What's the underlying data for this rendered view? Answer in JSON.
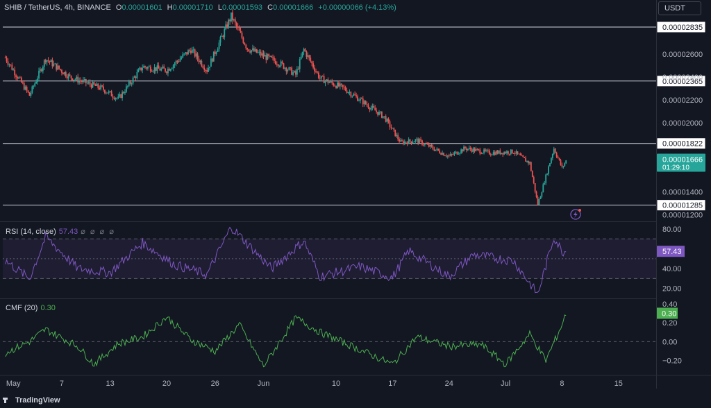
{
  "header": {
    "symbol": "SHIB / TetherUS, 4h, BINANCE",
    "open_key": "O",
    "open": "0.00001601",
    "high_key": "H",
    "high": "0.00001710",
    "low_key": "L",
    "low": "0.00001593",
    "close_key": "C",
    "close": "0.00001666",
    "change": "+0.00000066 (+4.13%)",
    "currency": "USDT"
  },
  "rsi_legend": {
    "name": "RSI (14, close)",
    "value": "57.43",
    "icons": "⌀ ⌀ ⌀ ⌀"
  },
  "cmf_legend": {
    "name": "CMF (20)",
    "value": "0.30"
  },
  "branding": {
    "text": "TradingView"
  },
  "colors": {
    "background": "#131722",
    "up": "#26a69a",
    "down": "#ef5350",
    "rsi": "#7e57c2",
    "cmf": "#4caf50",
    "level": "#d1d4dc"
  },
  "chart_data": [
    {
      "type": "candlestick",
      "series": [
        {
          "name": "SHIB / TetherUS, 4h, BINANCE"
        }
      ],
      "y_ticks": [
        "0.00002600",
        "0.00002400",
        "0.00002200",
        "0.00002000",
        "0.00001400",
        "0.00001200"
      ],
      "ylim": [
        1.15e-05,
        3.01e-05
      ],
      "x_ticks": [
        "May",
        "7",
        "13",
        "20",
        "26",
        "Jun",
        "10",
        "17",
        "24",
        "Jul",
        "8",
        "15"
      ],
      "horizontal_levels": [
        "0.00002835",
        "0.00002365",
        "0.00001822",
        "0.00001285"
      ],
      "last_price": {
        "value": "0.00001666",
        "countdown": "01:29:10"
      },
      "key_points": [
        {
          "x": "Apr 30",
          "y": 2.57e-05
        },
        {
          "x": "May 3",
          "y": 2.24e-05
        },
        {
          "x": "May 5",
          "y": 2.56e-05
        },
        {
          "x": "May 8",
          "y": 2.4e-05
        },
        {
          "x": "May 12",
          "y": 2.3e-05
        },
        {
          "x": "May 14",
          "y": 2.21e-05
        },
        {
          "x": "May 17",
          "y": 2.49e-05
        },
        {
          "x": "May 20",
          "y": 2.46e-05
        },
        {
          "x": "May 23",
          "y": 2.64e-05
        },
        {
          "x": "May 25",
          "y": 2.46e-05
        },
        {
          "x": "May 28",
          "y": 2.93e-05
        },
        {
          "x": "May 30",
          "y": 2.65e-05
        },
        {
          "x": "Jun 3",
          "y": 2.52e-05
        },
        {
          "x": "Jun 5",
          "y": 2.42e-05
        },
        {
          "x": "Jun 6",
          "y": 2.64e-05
        },
        {
          "x": "Jun 8",
          "y": 2.39e-05
        },
        {
          "x": "Jun 11",
          "y": 2.3e-05
        },
        {
          "x": "Jun 13",
          "y": 2.2e-05
        },
        {
          "x": "Jun 16",
          "y": 2.05e-05
        },
        {
          "x": "Jun 18",
          "y": 1.83e-05
        },
        {
          "x": "Jun 20",
          "y": 1.85e-05
        },
        {
          "x": "Jun 24",
          "y": 1.71e-05
        },
        {
          "x": "Jun 26",
          "y": 1.78e-05
        },
        {
          "x": "Jun 29",
          "y": 1.74e-05
        },
        {
          "x": "Jul 2",
          "y": 1.75e-05
        },
        {
          "x": "Jul 4",
          "y": 1.65e-05
        },
        {
          "x": "Jul 5",
          "y": 1.29e-05
        },
        {
          "x": "Jul 7",
          "y": 1.78e-05
        },
        {
          "x": "Jul 8",
          "y": 1.61e-05
        },
        {
          "x": "Jul 8",
          "y": 1.67e-05
        }
      ]
    },
    {
      "type": "line",
      "series": [
        {
          "name": "RSI (14, close)",
          "last": 57.43
        }
      ],
      "y_ticks": [
        "80.00",
        "60.00",
        "40.00",
        "20.00"
      ],
      "ylim": [
        10,
        87
      ],
      "bands": [
        30,
        50,
        70
      ],
      "key_points": [
        {
          "x": "Apr 30",
          "y": 48
        },
        {
          "x": "May 3",
          "y": 30
        },
        {
          "x": "May 5",
          "y": 72
        },
        {
          "x": "May 9",
          "y": 40
        },
        {
          "x": "May 13",
          "y": 36
        },
        {
          "x": "May 17",
          "y": 66
        },
        {
          "x": "May 21",
          "y": 44
        },
        {
          "x": "May 25",
          "y": 34
        },
        {
          "x": "May 28",
          "y": 82
        },
        {
          "x": "Jun 2",
          "y": 40
        },
        {
          "x": "Jun 6",
          "y": 68
        },
        {
          "x": "Jun 8",
          "y": 32
        },
        {
          "x": "Jun 13",
          "y": 42
        },
        {
          "x": "Jun 17",
          "y": 31
        },
        {
          "x": "Jun 19",
          "y": 58
        },
        {
          "x": "Jun 24",
          "y": 32
        },
        {
          "x": "Jun 27",
          "y": 54
        },
        {
          "x": "Jul 2",
          "y": 48
        },
        {
          "x": "Jul 5",
          "y": 14
        },
        {
          "x": "Jul 7",
          "y": 72
        },
        {
          "x": "Jul 8",
          "y": 57.43
        }
      ]
    },
    {
      "type": "line",
      "series": [
        {
          "name": "CMF (20)",
          "last": 0.3
        }
      ],
      "y_ticks": [
        "0.40",
        "0.20",
        "0.00",
        "−0.20"
      ],
      "ylim": [
        -0.35,
        0.45
      ],
      "zero_line": 0,
      "key_points": [
        {
          "x": "Apr 30",
          "y": -0.12
        },
        {
          "x": "May 3",
          "y": 0.0
        },
        {
          "x": "May 5",
          "y": 0.13
        },
        {
          "x": "May 9",
          "y": -0.05
        },
        {
          "x": "May 11",
          "y": -0.24
        },
        {
          "x": "May 14",
          "y": -0.02
        },
        {
          "x": "May 17",
          "y": 0.05
        },
        {
          "x": "May 20",
          "y": 0.26
        },
        {
          "x": "May 23",
          "y": 0.02
        },
        {
          "x": "May 26",
          "y": -0.1
        },
        {
          "x": "May 29",
          "y": 0.18
        },
        {
          "x": "Jun 1",
          "y": -0.26
        },
        {
          "x": "Jun 5",
          "y": 0.25
        },
        {
          "x": "Jun 8",
          "y": 0.1
        },
        {
          "x": "Jun 12",
          "y": -0.05
        },
        {
          "x": "Jun 17",
          "y": -0.24
        },
        {
          "x": "Jun 20",
          "y": 0.05
        },
        {
          "x": "Jun 24",
          "y": -0.05
        },
        {
          "x": "Jun 28",
          "y": -0.03
        },
        {
          "x": "Jul 1",
          "y": -0.24
        },
        {
          "x": "Jul 4",
          "y": 0.08
        },
        {
          "x": "Jul 6",
          "y": -0.2
        },
        {
          "x": "Jul 8",
          "y": 0.18
        },
        {
          "x": "Jul 8",
          "y": 0.3
        }
      ]
    }
  ]
}
